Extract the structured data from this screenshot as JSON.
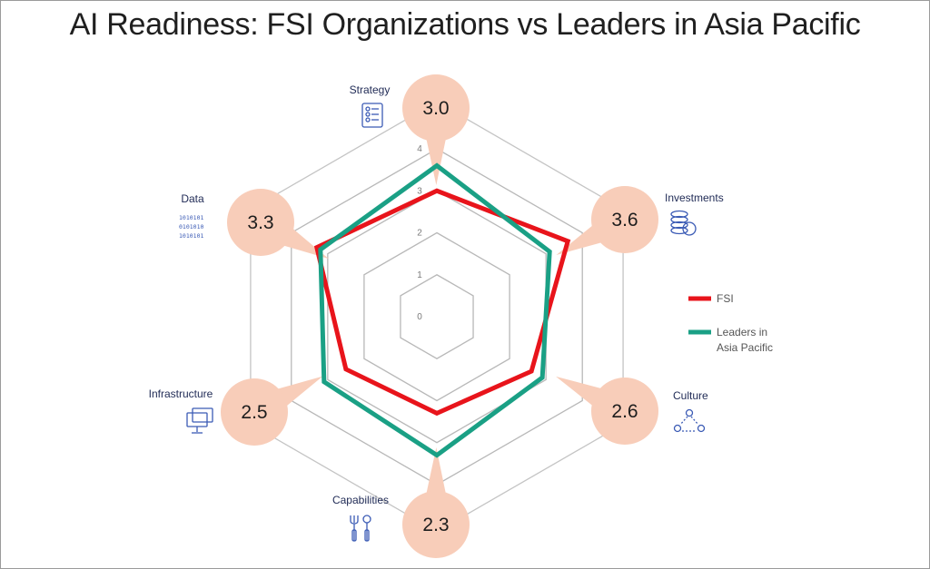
{
  "title": "AI Readiness: FSI Organizations vs Leaders in Asia Pacific",
  "chart_data": {
    "type": "radar",
    "title": "AI Readiness: FSI Organizations vs Leaders in Asia Pacific",
    "axes": [
      {
        "name": "Strategy",
        "icon": "strategy-checklist-icon",
        "bubble": "3.0"
      },
      {
        "name": "Investments",
        "icon": "coins-stack-icon",
        "bubble": "3.6"
      },
      {
        "name": "Culture",
        "icon": "people-network-icon",
        "bubble": "2.6"
      },
      {
        "name": "Capabilities",
        "icon": "tools-icon",
        "bubble": "2.3"
      },
      {
        "name": "Infrastructure",
        "icon": "monitors-icon",
        "bubble": "2.5"
      },
      {
        "name": "Data",
        "icon": "binary-data-icon",
        "bubble": "3.3"
      }
    ],
    "ticks": [
      "0",
      "1",
      "2",
      "3",
      "4"
    ],
    "range": [
      0,
      4
    ],
    "series": [
      {
        "name": "FSI",
        "color": "#e8141b",
        "values": [
          3.0,
          3.6,
          2.6,
          2.3,
          2.5,
          3.3
        ]
      },
      {
        "name": "Leaders in Asia Pacific",
        "color": "#1aa085",
        "values": [
          3.6,
          3.1,
          2.9,
          3.3,
          3.1,
          3.2
        ]
      }
    ],
    "legend_position": "right",
    "bubble_color": "#f8cdb9"
  }
}
